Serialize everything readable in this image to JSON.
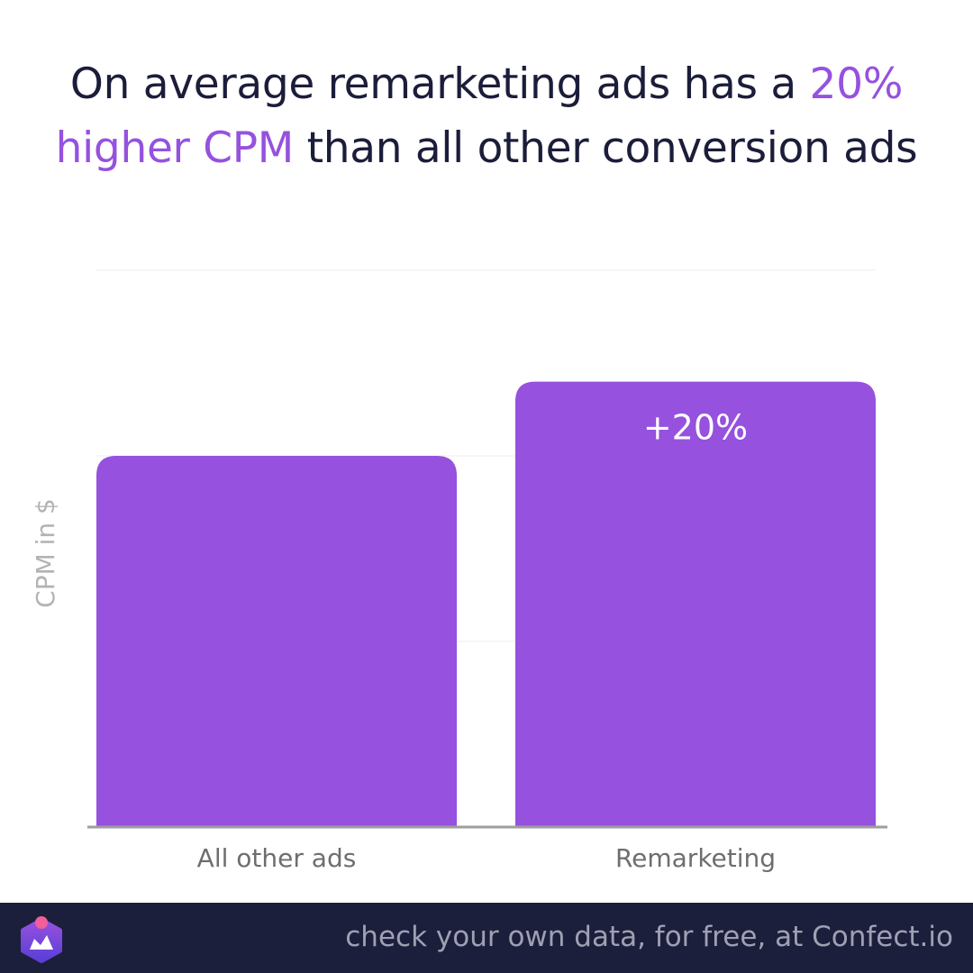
{
  "headline": {
    "part1": "On average remarketing ads has a ",
    "highlight1": "20%",
    "part2": "higher CPM",
    "part3": " than all other conversion ads"
  },
  "chart_data": {
    "type": "bar",
    "categories": [
      "All other ads",
      "Remarketing"
    ],
    "values": [
      100,
      120
    ],
    "ylim": [
      0,
      150
    ],
    "ylabel": "CPM in $",
    "xlabel": "",
    "grid": true,
    "annotations": [
      {
        "category": "Remarketing",
        "label": "+20%"
      }
    ],
    "colors": {
      "bar": "#9651de",
      "grid": "#ececec",
      "axis": "#9e9e9e",
      "label": "#6e6e6e",
      "ylabel": "#b3b3b3",
      "annotation": "#ffffff"
    }
  },
  "footer": {
    "text": "check your own data, for free, at Confect.io",
    "logo_icon": "confect-logo-icon",
    "colors": {
      "background": "#1c1f3b",
      "logo_gradient_top": "#9651de",
      "logo_gradient_bottom": "#5b3fd6",
      "logo_dot": "#f25e9a"
    }
  }
}
